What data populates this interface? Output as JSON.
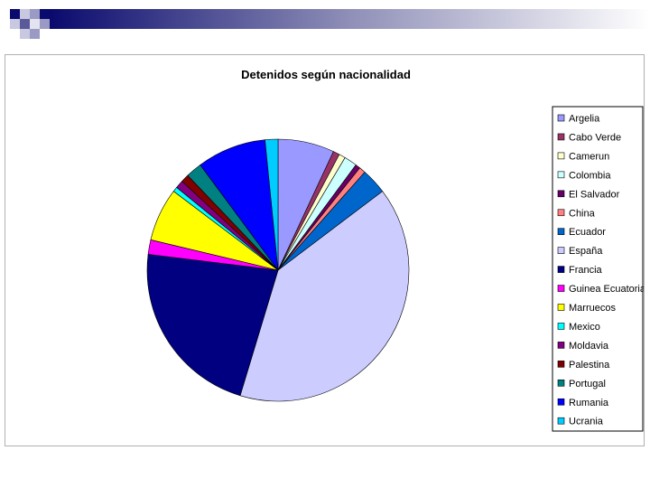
{
  "chart_data": {
    "type": "pie",
    "title": "Detenidos según nacionalidad",
    "legend_position": "right",
    "categories": [
      "Argelia",
      "Cabo Verde",
      "Camerun",
      "Colombia",
      "El Salvador",
      "China",
      "Ecuador",
      "España",
      "Francia",
      "Guinea Ecuatorial",
      "Marruecos",
      "Mexico",
      "Moldavia",
      "Palestina",
      "Portugal",
      "Rumania",
      "Ucrania"
    ],
    "values": [
      7.0,
      0.8,
      0.8,
      1.6,
      0.6,
      0.8,
      3.2,
      40.2,
      22.4,
      1.8,
      6.6,
      0.6,
      1.0,
      1.0,
      2.0,
      8.6,
      1.6
    ],
    "colors": [
      "#9999ff",
      "#993366",
      "#ffffcc",
      "#ccffff",
      "#660066",
      "#ff8080",
      "#0066cc",
      "#ccccff",
      "#000080",
      "#ff00ff",
      "#ffff00",
      "#00ffff",
      "#800080",
      "#800000",
      "#008080",
      "#0000ff",
      "#00ccff"
    ]
  }
}
